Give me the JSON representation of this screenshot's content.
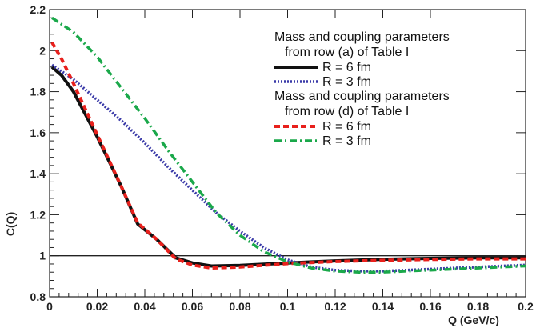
{
  "chart_data": {
    "type": "line",
    "xlabel": "Q (GeV/c)",
    "ylabel": "C(Q)",
    "xlim": [
      0,
      0.2
    ],
    "ylim": [
      0.8,
      2.2
    ],
    "x_ticks": [
      "0",
      "0.02",
      "0.04",
      "0.06",
      "0.08",
      "0.1",
      "0.12",
      "0.14",
      "0.16",
      "0.18",
      "0.2"
    ],
    "y_ticks": [
      "0.8",
      "1",
      "1.2",
      "1.4",
      "1.6",
      "1.8",
      "2",
      "2.2"
    ],
    "reference_line": 1,
    "grid": false,
    "legend_position": "top-right",
    "legend_groups": [
      {
        "heading_lines": [
          "Mass and coupling parameters",
          "from row (a) of Table I"
        ],
        "entries": [
          {
            "label": "R = 6 fm",
            "series_index": 0
          },
          {
            "label": "R = 3 fm",
            "series_index": 1
          }
        ]
      },
      {
        "heading_lines": [
          "Mass and coupling parameters",
          "from row (d) of Table I"
        ],
        "entries": [
          {
            "label": "R = 6 fm",
            "series_index": 2
          },
          {
            "label": "R = 3 fm",
            "series_index": 3
          }
        ]
      }
    ],
    "series": [
      {
        "color": "#111111",
        "dash": "solid",
        "x": [
          0.001,
          0.005,
          0.01,
          0.02,
          0.03,
          0.037,
          0.045,
          0.053,
          0.06,
          0.068,
          0.08,
          0.1,
          0.12,
          0.14,
          0.16,
          0.18,
          0.2
        ],
        "y": [
          1.92,
          1.88,
          1.8,
          1.58,
          1.34,
          1.155,
          1.08,
          0.99,
          0.965,
          0.95,
          0.953,
          0.965,
          0.975,
          0.983,
          0.987,
          0.99,
          0.99
        ]
      },
      {
        "color": "#3a3aa8",
        "dash": "dotted",
        "x": [
          0.001,
          0.01,
          0.02,
          0.03,
          0.04,
          0.05,
          0.06,
          0.07,
          0.08,
          0.09,
          0.1,
          0.11,
          0.12,
          0.13,
          0.14,
          0.15,
          0.16,
          0.17,
          0.18,
          0.19,
          0.2
        ],
        "y": [
          1.93,
          1.86,
          1.76,
          1.66,
          1.55,
          1.43,
          1.32,
          1.21,
          1.12,
          1.04,
          0.98,
          0.945,
          0.93,
          0.925,
          0.925,
          0.93,
          0.935,
          0.94,
          0.945,
          0.95,
          0.955
        ]
      },
      {
        "color": "#e8201c",
        "dash": "dashed",
        "x": [
          0.001,
          0.005,
          0.01,
          0.02,
          0.03,
          0.037,
          0.045,
          0.053,
          0.06,
          0.068,
          0.08,
          0.1,
          0.12,
          0.14,
          0.16,
          0.18,
          0.2
        ],
        "y": [
          2.04,
          1.96,
          1.84,
          1.59,
          1.34,
          1.16,
          1.08,
          0.985,
          0.955,
          0.94,
          0.945,
          0.962,
          0.972,
          0.978,
          0.982,
          0.985,
          0.985
        ]
      },
      {
        "color": "#1aa84a",
        "dash": "dashdot",
        "x": [
          0.001,
          0.01,
          0.02,
          0.03,
          0.04,
          0.05,
          0.06,
          0.07,
          0.08,
          0.09,
          0.1,
          0.11,
          0.12,
          0.13,
          0.14,
          0.15,
          0.16,
          0.17,
          0.18,
          0.19,
          0.2
        ],
        "y": [
          2.16,
          2.09,
          1.97,
          1.82,
          1.67,
          1.51,
          1.36,
          1.21,
          1.1,
          1.02,
          0.97,
          0.94,
          0.925,
          0.92,
          0.92,
          0.925,
          0.93,
          0.935,
          0.94,
          0.945,
          0.95
        ]
      }
    ]
  }
}
